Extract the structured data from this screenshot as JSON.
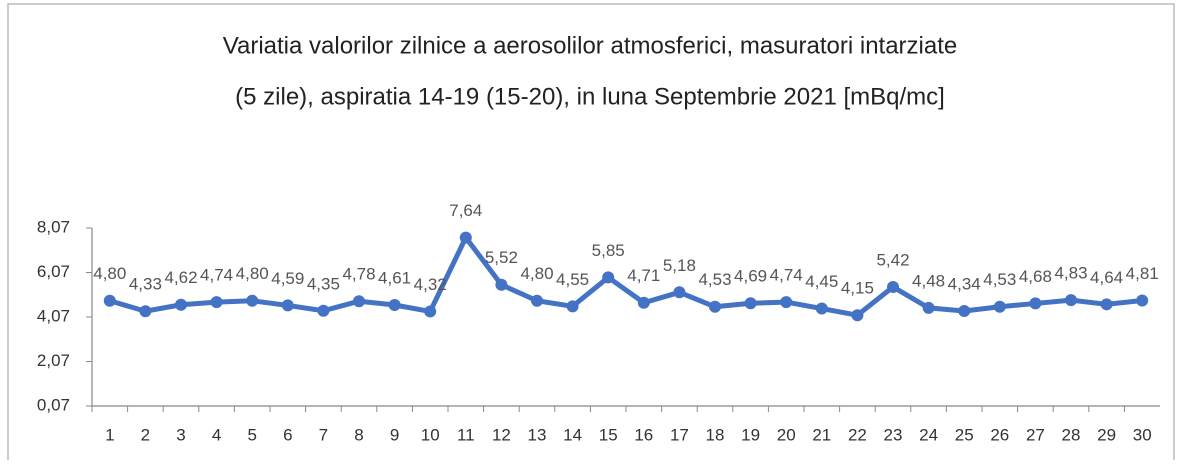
{
  "chart_data": {
    "type": "line",
    "title": [
      "Variatia valorilor zilnice a aerosolilor atmosferici, masuratori intarziate",
      "(5 zile), aspiratia 14-19 (15-20),  in luna Septembrie 2021 [mBq/mc]"
    ],
    "categories": [
      "1",
      "2",
      "3",
      "4",
      "5",
      "6",
      "7",
      "8",
      "9",
      "10",
      "11",
      "12",
      "13",
      "14",
      "15",
      "16",
      "17",
      "18",
      "19",
      "20",
      "21",
      "22",
      "23",
      "24",
      "25",
      "26",
      "27",
      "28",
      "29",
      "30"
    ],
    "values": [
      4.8,
      4.33,
      4.62,
      4.74,
      4.8,
      4.59,
      4.35,
      4.78,
      4.61,
      4.32,
      7.64,
      5.52,
      4.8,
      4.55,
      5.85,
      4.71,
      5.18,
      4.53,
      4.69,
      4.74,
      4.45,
      4.15,
      5.42,
      4.48,
      4.34,
      4.53,
      4.68,
      4.83,
      4.64,
      4.81
    ],
    "value_labels": [
      "4,80",
      "4,33",
      "4,62",
      "4,74",
      "4,80",
      "4,59",
      "4,35",
      "4,78",
      "4,61",
      "4,32",
      "7,64",
      "5,52",
      "4,80",
      "4,55",
      "5,85",
      "4,71",
      "5,18",
      "4,53",
      "4,69",
      "4,74",
      "4,45",
      "4,15",
      "5,42",
      "4,48",
      "4,34",
      "4,53",
      "4,68",
      "4,83",
      "4,64",
      "4,81"
    ],
    "color": "#4472c4",
    "ylim": [
      0.07,
      8.07
    ],
    "yticks": [
      {
        "value": 0.07,
        "label": "0,07"
      },
      {
        "value": 2.07,
        "label": "2,07"
      },
      {
        "value": 4.07,
        "label": "4,07"
      },
      {
        "value": 6.07,
        "label": "6,07"
      },
      {
        "value": 8.07,
        "label": "8,07"
      }
    ],
    "grid": false
  }
}
